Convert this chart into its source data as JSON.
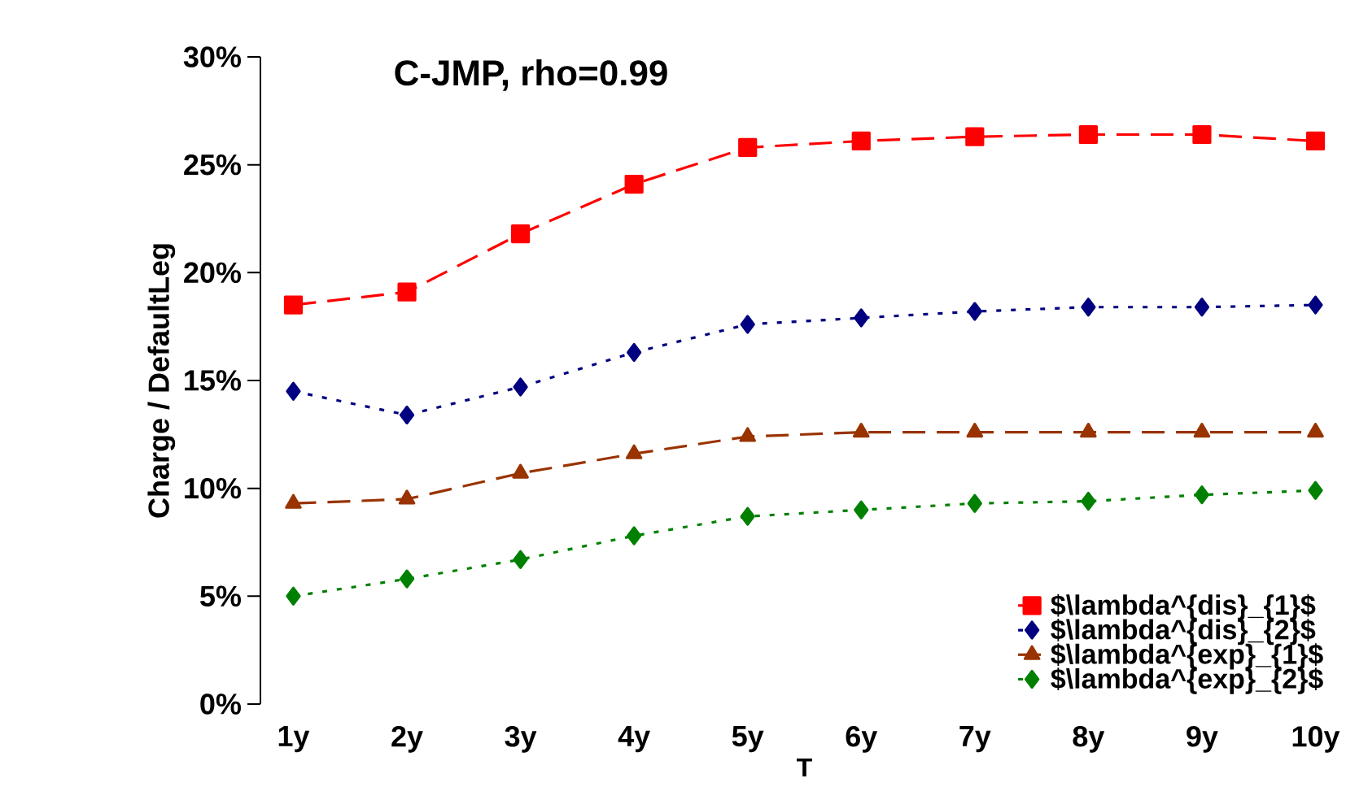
{
  "chart_data": {
    "type": "line",
    "title": "C-JMP, rho=0.99",
    "xlabel": "T",
    "ylabel": "Charge / DefaultLeg",
    "categories": [
      "1y",
      "2y",
      "3y",
      "4y",
      "5y",
      "6y",
      "7y",
      "8y",
      "9y",
      "10y"
    ],
    "series": [
      {
        "name": "$\\lambda^{dis}_{1}$",
        "color": "#ff0000",
        "marker": "square",
        "line_style": "dashed",
        "values": [
          18.5,
          19.1,
          21.8,
          24.1,
          25.8,
          26.1,
          26.3,
          26.4,
          26.4,
          26.1
        ]
      },
      {
        "name": "$\\lambda^{dis}_{2}$",
        "color": "#000080",
        "marker": "diamond",
        "line_style": "dotted",
        "values": [
          14.5,
          13.4,
          14.7,
          16.3,
          17.6,
          17.9,
          18.2,
          18.4,
          18.4,
          18.5
        ]
      },
      {
        "name": "$\\lambda^{exp}_{1}$",
        "color": "#993300",
        "marker": "triangle",
        "line_style": "dashed",
        "values": [
          9.3,
          9.5,
          10.7,
          11.6,
          12.4,
          12.6,
          12.6,
          12.6,
          12.6,
          12.6
        ]
      },
      {
        "name": "$\\lambda^{exp}_{2}$",
        "color": "#008000",
        "marker": "diamond",
        "line_style": "dotted",
        "values": [
          5.0,
          5.8,
          6.7,
          7.8,
          8.7,
          9.0,
          9.3,
          9.4,
          9.7,
          9.9
        ]
      }
    ],
    "ylim": [
      0,
      30
    ],
    "yticks": [
      {
        "value": 0,
        "label": "0%"
      },
      {
        "value": 5,
        "label": "5%"
      },
      {
        "value": 10,
        "label": "10%"
      },
      {
        "value": 15,
        "label": "15%"
      },
      {
        "value": 20,
        "label": "20%"
      },
      {
        "value": 25,
        "label": "25%"
      },
      {
        "value": 30,
        "label": "30%"
      }
    ],
    "grid": false,
    "legend": "bottom right"
  }
}
